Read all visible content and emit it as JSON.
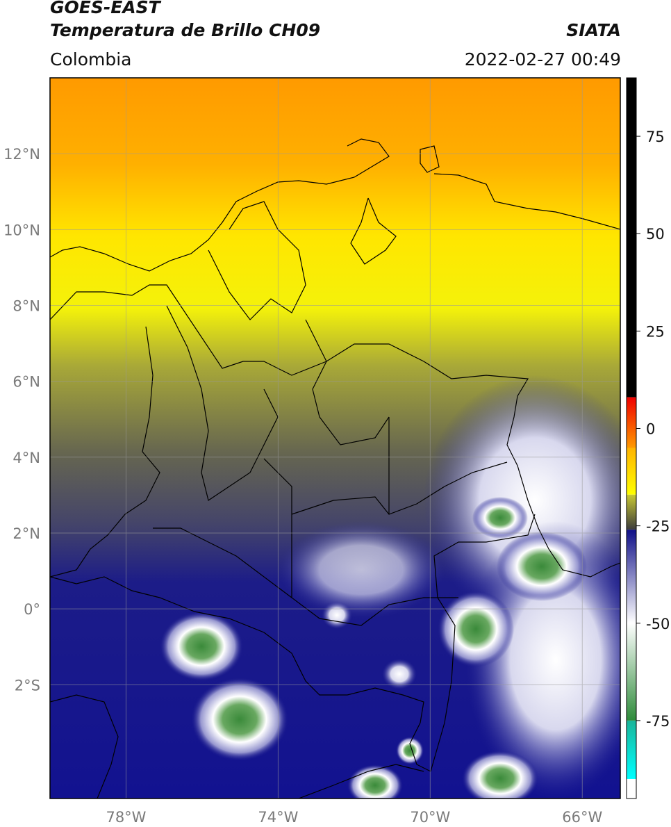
{
  "header": {
    "title_line1": "GOES-EAST",
    "title_line2": "Temperatura de Brillo CH09",
    "region": "Colombia",
    "brand": "SIATA",
    "timestamp": "2022-02-27 00:49"
  },
  "map": {
    "extent": {
      "lon_min": -80,
      "lon_max": -65,
      "lat_min": -5,
      "lat_max": 14
    },
    "lon_ticks": [
      {
        "value": -78,
        "label": "78°W"
      },
      {
        "value": -74,
        "label": "74°W"
      },
      {
        "value": -70,
        "label": "70°W"
      },
      {
        "value": -66,
        "label": "66°W"
      }
    ],
    "lat_ticks": [
      {
        "value": 12,
        "label": "12°N"
      },
      {
        "value": 10,
        "label": "10°N"
      },
      {
        "value": 8,
        "label": "8°N"
      },
      {
        "value": 6,
        "label": "6°N"
      },
      {
        "value": 4,
        "label": "4°N"
      },
      {
        "value": 2,
        "label": "2°N"
      },
      {
        "value": 0,
        "label": "0°"
      },
      {
        "value": -2,
        "label": "2°S"
      }
    ],
    "gridlines": true
  },
  "colorbar": {
    "range": [
      -95,
      90
    ],
    "ticks": [
      {
        "value": 75,
        "label": "75"
      },
      {
        "value": 50,
        "label": "50"
      },
      {
        "value": 25,
        "label": "25"
      },
      {
        "value": 0,
        "label": "0"
      },
      {
        "value": -25,
        "label": "-25"
      },
      {
        "value": -50,
        "label": "-50"
      },
      {
        "value": -75,
        "label": "-75"
      }
    ],
    "segments": [
      {
        "from": 8,
        "to": 90,
        "color": "#000000"
      },
      {
        "from": -5,
        "to": 8,
        "color_top": "#f00000",
        "color_bottom": "#ff9a00"
      },
      {
        "from": -17,
        "to": -5,
        "color_top": "#ffb400",
        "color_bottom": "#ffff00"
      },
      {
        "from": -26,
        "to": -17,
        "color_top": "#c8c832",
        "color_bottom": "#3c3c3c"
      },
      {
        "from": -50,
        "to": -26,
        "color_top": "#101088",
        "color_bottom": "#ffffff"
      },
      {
        "from": -75,
        "to": -50,
        "color_top": "#ffffff",
        "color_bottom": "#2e8b3a"
      },
      {
        "from": -90,
        "to": -75,
        "color_top": "#1ab59a",
        "color_bottom": "#00ffff"
      },
      {
        "from": -95,
        "to": -90,
        "color": "#ffffff"
      }
    ]
  }
}
